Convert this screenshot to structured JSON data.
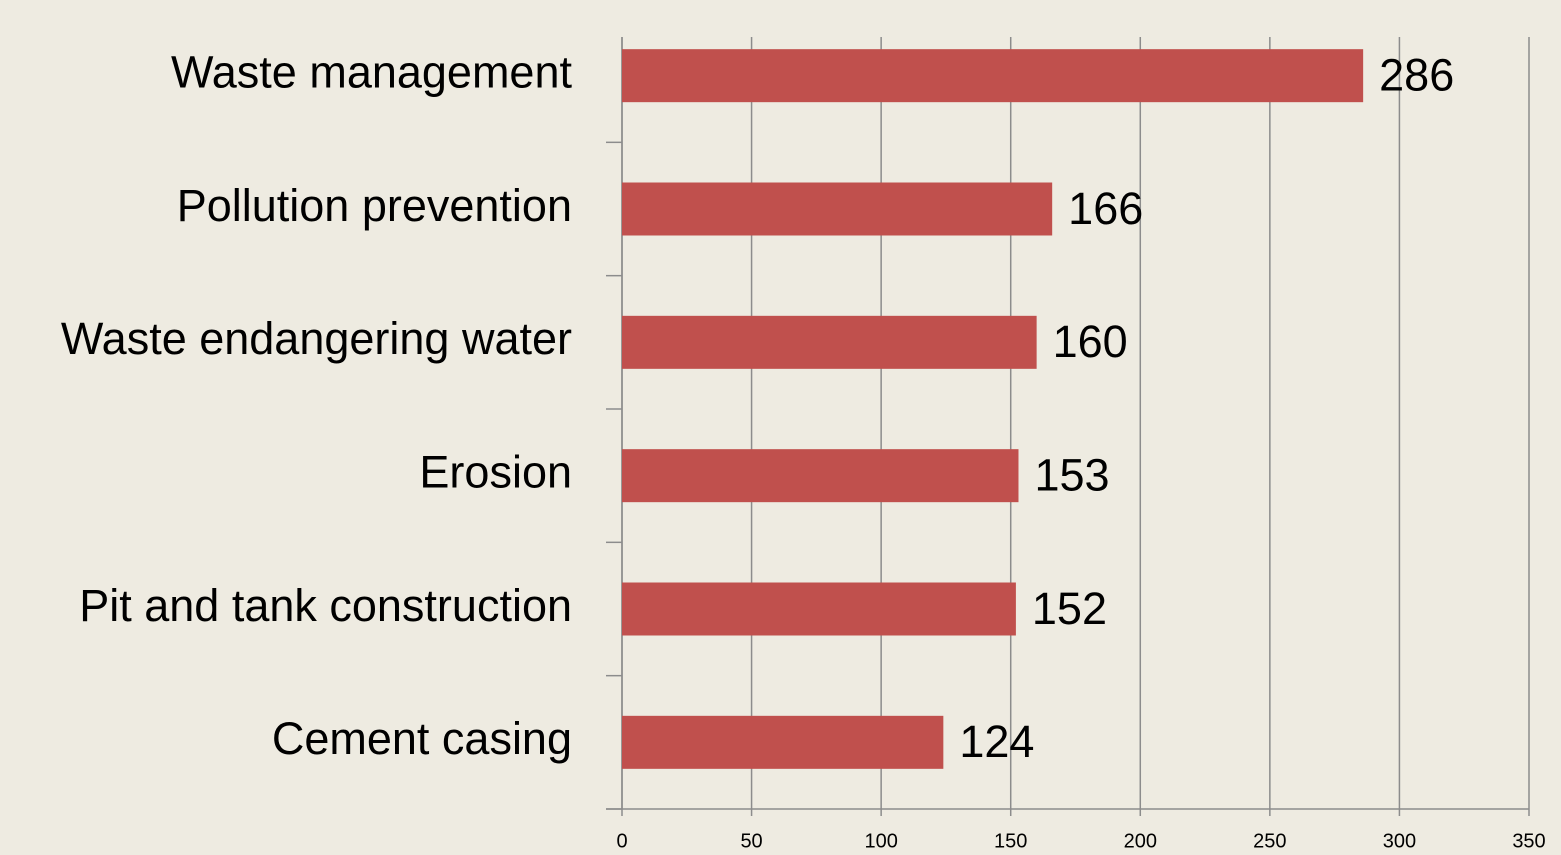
{
  "chart_data": {
    "type": "bar",
    "orientation": "horizontal",
    "categories": [
      "Waste management",
      "Pollution prevention",
      "Waste endangering water",
      "Erosion",
      "Pit and tank construction",
      "Cement casing"
    ],
    "values": [
      286,
      166,
      160,
      153,
      152,
      124
    ],
    "color": "#c0504d",
    "xlim": [
      0,
      350
    ],
    "xticks": [
      0,
      50,
      100,
      150,
      200,
      250,
      300,
      350
    ],
    "grid": true
  }
}
